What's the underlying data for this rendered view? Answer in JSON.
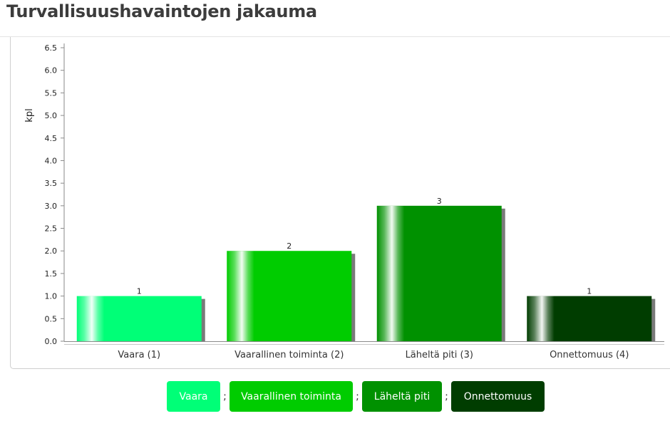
{
  "page": {
    "title": "Turvallisuushavaintojen jakauma"
  },
  "chart_data": {
    "type": "bar",
    "categories": [
      "Vaara (1)",
      "Vaarallinen toiminta (2)",
      "Läheltä piti (3)",
      "Onnettomuus (4)"
    ],
    "values": [
      1,
      2,
      3,
      1
    ],
    "value_labels": [
      "1",
      "2",
      "3",
      "1"
    ],
    "bar_colors": [
      "#00ff77",
      "#00cc00",
      "#009100",
      "#003d00"
    ],
    "title": "",
    "xlabel": "",
    "ylabel": "kpl",
    "ylim": [
      0,
      6.5
    ],
    "yticks": [
      "0.0",
      "0.5",
      "1.0",
      "1.5",
      "2.0",
      "2.5",
      "3.0",
      "3.5",
      "4.0",
      "4.5",
      "5.0",
      "5.5",
      "6.0",
      "6.5"
    ],
    "grid": false,
    "legend_position": "bottom"
  },
  "legend": {
    "items": [
      {
        "label": "Vaara",
        "color": "#00ff77"
      },
      {
        "label": "Vaarallinen toiminta",
        "color": "#00cc00"
      },
      {
        "label": "Läheltä piti",
        "color": "#009100"
      },
      {
        "label": "Onnettomuus",
        "color": "#003d00"
      }
    ],
    "separator": ";"
  }
}
